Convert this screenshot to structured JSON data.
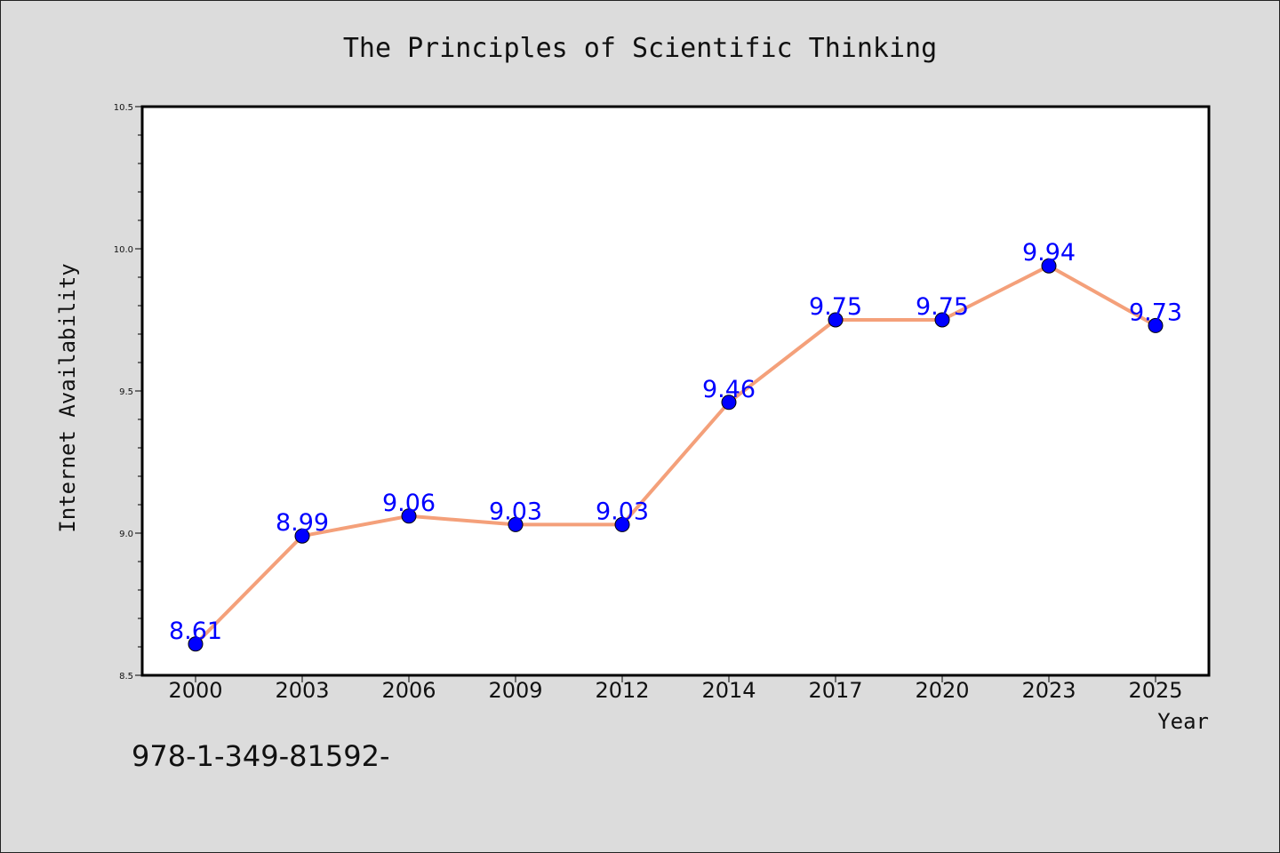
{
  "chart_data": {
    "type": "line",
    "title": "The Principles of Scientific Thinking",
    "xlabel": "Year",
    "ylabel": "Internet Availability",
    "categories": [
      "2000",
      "2003",
      "2006",
      "2009",
      "2012",
      "2014",
      "2017",
      "2020",
      "2023",
      "2025"
    ],
    "series": [
      {
        "values": [
          8.61,
          8.99,
          9.06,
          9.03,
          9.03,
          9.46,
          9.75,
          9.75,
          9.94,
          9.73
        ],
        "data_labels": [
          "8.61",
          "8.99",
          "9.06",
          "9.03",
          "9.03",
          "9.46",
          "9.75",
          "9.75",
          "9.94",
          "9.73"
        ],
        "line_color": "#f4a07a",
        "marker_color": "#0000ff"
      }
    ],
    "ylim": [
      8.5,
      10.5
    ],
    "y_ticks": [
      "8.5",
      "9.0",
      "9.5",
      "10.0",
      "10.5"
    ],
    "grid": false,
    "legend": false
  },
  "footer": {
    "isbn": "978-1-349-81592-"
  }
}
